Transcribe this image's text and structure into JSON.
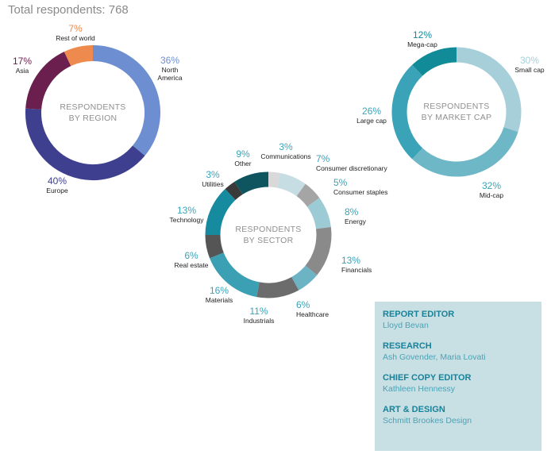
{
  "header": {
    "total_label": "Total respondents: 768"
  },
  "chart_data": [
    {
      "type": "pie",
      "center_title": [
        "RESPONDENTS",
        "BY REGION"
      ],
      "slices": [
        {
          "label": [
            "North",
            "America"
          ],
          "pct_text": "36%",
          "value": 36,
          "color": "#6d8fd1",
          "pct_color": "#6d8fd1"
        },
        {
          "label": [
            "Europe"
          ],
          "pct_text": "40%",
          "value": 40,
          "color": "#3e3f8f",
          "pct_color": "#3e3f8f"
        },
        {
          "label": [
            "Asia"
          ],
          "pct_text": "17%",
          "value": 17,
          "color": "#6b1f4e",
          "pct_color": "#6b1f4e"
        },
        {
          "label": [
            "Rest of world"
          ],
          "pct_text": "7%",
          "value": 7,
          "color": "#ee8a4d",
          "pct_color": "#ee8a4d"
        }
      ]
    },
    {
      "type": "pie",
      "center_title": [
        "RESPONDENTS",
        "BY SECTOR"
      ],
      "slices": [
        {
          "label": [
            "Communications"
          ],
          "pct_text": "3%",
          "value": 3,
          "color": "#d9d9d9",
          "pct_color": "#3aa3b8"
        },
        {
          "label": [
            "Consumer discretionary"
          ],
          "pct_text": "7%",
          "value": 7,
          "color": "#c6dde3",
          "pct_color": "#3aa3b8"
        },
        {
          "label": [
            "Consumer staples"
          ],
          "pct_text": "5%",
          "value": 5,
          "color": "#a5a5a5",
          "pct_color": "#3aa3b8"
        },
        {
          "label": [
            "Energy"
          ],
          "pct_text": "8%",
          "value": 8,
          "color": "#9ccbd6",
          "pct_color": "#3aa3b8"
        },
        {
          "label": [
            "Financials"
          ],
          "pct_text": "13%",
          "value": 13,
          "color": "#8a8a8a",
          "pct_color": "#3aa3b8"
        },
        {
          "label": [
            "Healthcare"
          ],
          "pct_text": "6%",
          "value": 6,
          "color": "#6cb4c4",
          "pct_color": "#3aa3b8"
        },
        {
          "label": [
            "Industrials"
          ],
          "pct_text": "11%",
          "value": 11,
          "color": "#6c6c6c",
          "pct_color": "#3aa3b8"
        },
        {
          "label": [
            "Materials"
          ],
          "pct_text": "16%",
          "value": 16,
          "color": "#3ba0b3",
          "pct_color": "#3aa3b8"
        },
        {
          "label": [
            "Real estate"
          ],
          "pct_text": "6%",
          "value": 6,
          "color": "#555555",
          "pct_color": "#3aa3b8"
        },
        {
          "label": [
            "Technology"
          ],
          "pct_text": "13%",
          "value": 13,
          "color": "#168a9e",
          "pct_color": "#3aa3b8"
        },
        {
          "label": [
            "Utilities"
          ],
          "pct_text": "3%",
          "value": 3,
          "color": "#3a3a3a",
          "pct_color": "#3aa3b8"
        },
        {
          "label": [
            "Other"
          ],
          "pct_text": "9%",
          "value": 9,
          "color": "#0e5560",
          "pct_color": "#3aa3b8"
        }
      ]
    },
    {
      "type": "pie",
      "center_title": [
        "RESPONDENTS",
        "BY MARKET CAP"
      ],
      "slices": [
        {
          "label": [
            "Small cap"
          ],
          "pct_text": "30%",
          "value": 30,
          "color": "#a6cfd9",
          "pct_color": "#a6cfd9"
        },
        {
          "label": [
            "Mid-cap"
          ],
          "pct_text": "32%",
          "value": 32,
          "color": "#6db7c6",
          "pct_color": "#3aa3b8"
        },
        {
          "label": [
            "Large cap"
          ],
          "pct_text": "26%",
          "value": 26,
          "color": "#3aa3b8",
          "pct_color": "#3aa3b8"
        },
        {
          "label": [
            "Mega-cap"
          ],
          "pct_text": "12%",
          "value": 12,
          "color": "#128b99",
          "pct_color": "#128b99"
        }
      ]
    }
  ],
  "credits": [
    {
      "role": "REPORT EDITOR",
      "name": "Lloyd Bevan"
    },
    {
      "role": "RESEARCH",
      "name": "Ash Govender, Maria Lovati"
    },
    {
      "role": "CHIEF COPY EDITOR",
      "name": "Kathleen Hennessy"
    },
    {
      "role": "ART & DESIGN",
      "name": "Schmitt Brookes Design"
    }
  ]
}
